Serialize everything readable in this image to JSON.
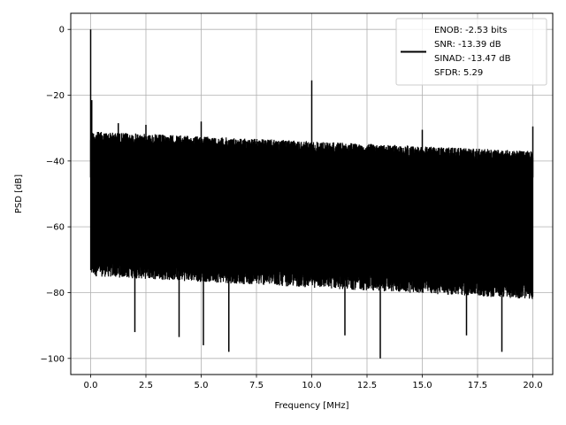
{
  "chart_data": {
    "type": "line",
    "title": "",
    "xlabel": "Frequency [MHz]",
    "ylabel": "PSD [dB]",
    "xlim": [
      -0.9,
      20.9
    ],
    "ylim": [
      -104.9,
      4.9
    ],
    "xticks": [
      "0.0",
      "2.5",
      "5.0",
      "7.5",
      "10.0",
      "12.5",
      "15.0",
      "17.5",
      "20.0"
    ],
    "xtick_values": [
      0,
      2.5,
      5,
      7.5,
      10,
      12.5,
      15,
      17.5,
      20
    ],
    "yticks": [
      "0",
      "−20",
      "−40",
      "−60",
      "−80",
      "−100"
    ],
    "ytick_values": [
      0,
      -20,
      -40,
      -60,
      -80,
      -100
    ],
    "grid": true,
    "legend_position": "top-right",
    "legend": [
      "ENOB: -2.53 bits",
      "SNR: -13.39 dB",
      "SINAD: -13.47 dB",
      "SFDR: 5.29"
    ],
    "series": [
      {
        "color": "#000000",
        "noise_floor_top_db": [
          -31,
          -37
        ],
        "noise_floor_bottom_db": [
          -72,
          -79
        ],
        "peaks": [
          {
            "x": 0.0,
            "y": 0
          },
          {
            "x": 0.05,
            "y": -21.5
          },
          {
            "x": 1.25,
            "y": -28.5
          },
          {
            "x": 2.5,
            "y": -29
          },
          {
            "x": 5.0,
            "y": -28
          },
          {
            "x": 10.0,
            "y": -15.5
          },
          {
            "x": 15.0,
            "y": -30.5
          },
          {
            "x": 20.0,
            "y": -29.5
          }
        ],
        "dips": [
          {
            "x": 2.0,
            "y": -92
          },
          {
            "x": 4.0,
            "y": -93.5
          },
          {
            "x": 5.1,
            "y": -96
          },
          {
            "x": 6.25,
            "y": -98
          },
          {
            "x": 11.5,
            "y": -93
          },
          {
            "x": 13.1,
            "y": -100
          },
          {
            "x": 17.0,
            "y": -93
          },
          {
            "x": 18.6,
            "y": -98
          }
        ]
      }
    ]
  }
}
